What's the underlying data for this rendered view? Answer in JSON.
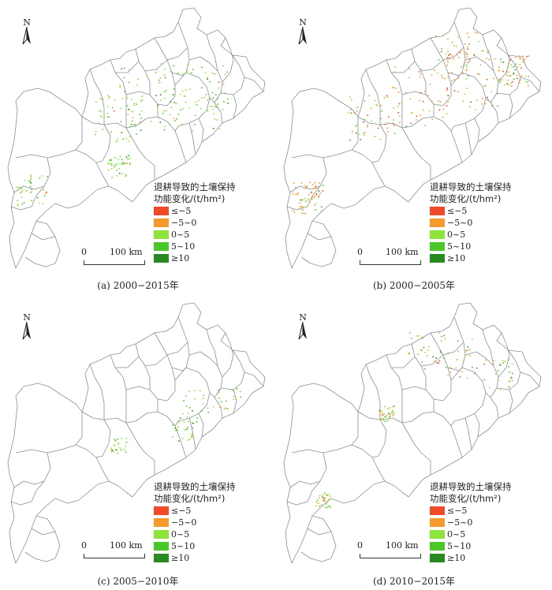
{
  "north_label": "N",
  "legend": {
    "title_line1": "退耕导致的土壤保持",
    "title_line2": "功能变化/(t/hm²)",
    "classes": [
      {
        "label": "≤−5",
        "color": "#f04a2a"
      },
      {
        "label": "−5~0",
        "color": "#f79a2e"
      },
      {
        "label": "0~5",
        "color": "#8ee43a"
      },
      {
        "label": "5~10",
        "color": "#4cc72a"
      },
      {
        "label": "≥10",
        "color": "#2a8a22"
      }
    ]
  },
  "scalebar": {
    "zero": "0",
    "distance": "100 km"
  },
  "panels": [
    {
      "caption": "(a) 2000−2015年"
    },
    {
      "caption": "(b) 2000−2005年"
    },
    {
      "caption": "(c) 2005−2010年"
    },
    {
      "caption": "(d) 2010−2015年"
    }
  ]
}
